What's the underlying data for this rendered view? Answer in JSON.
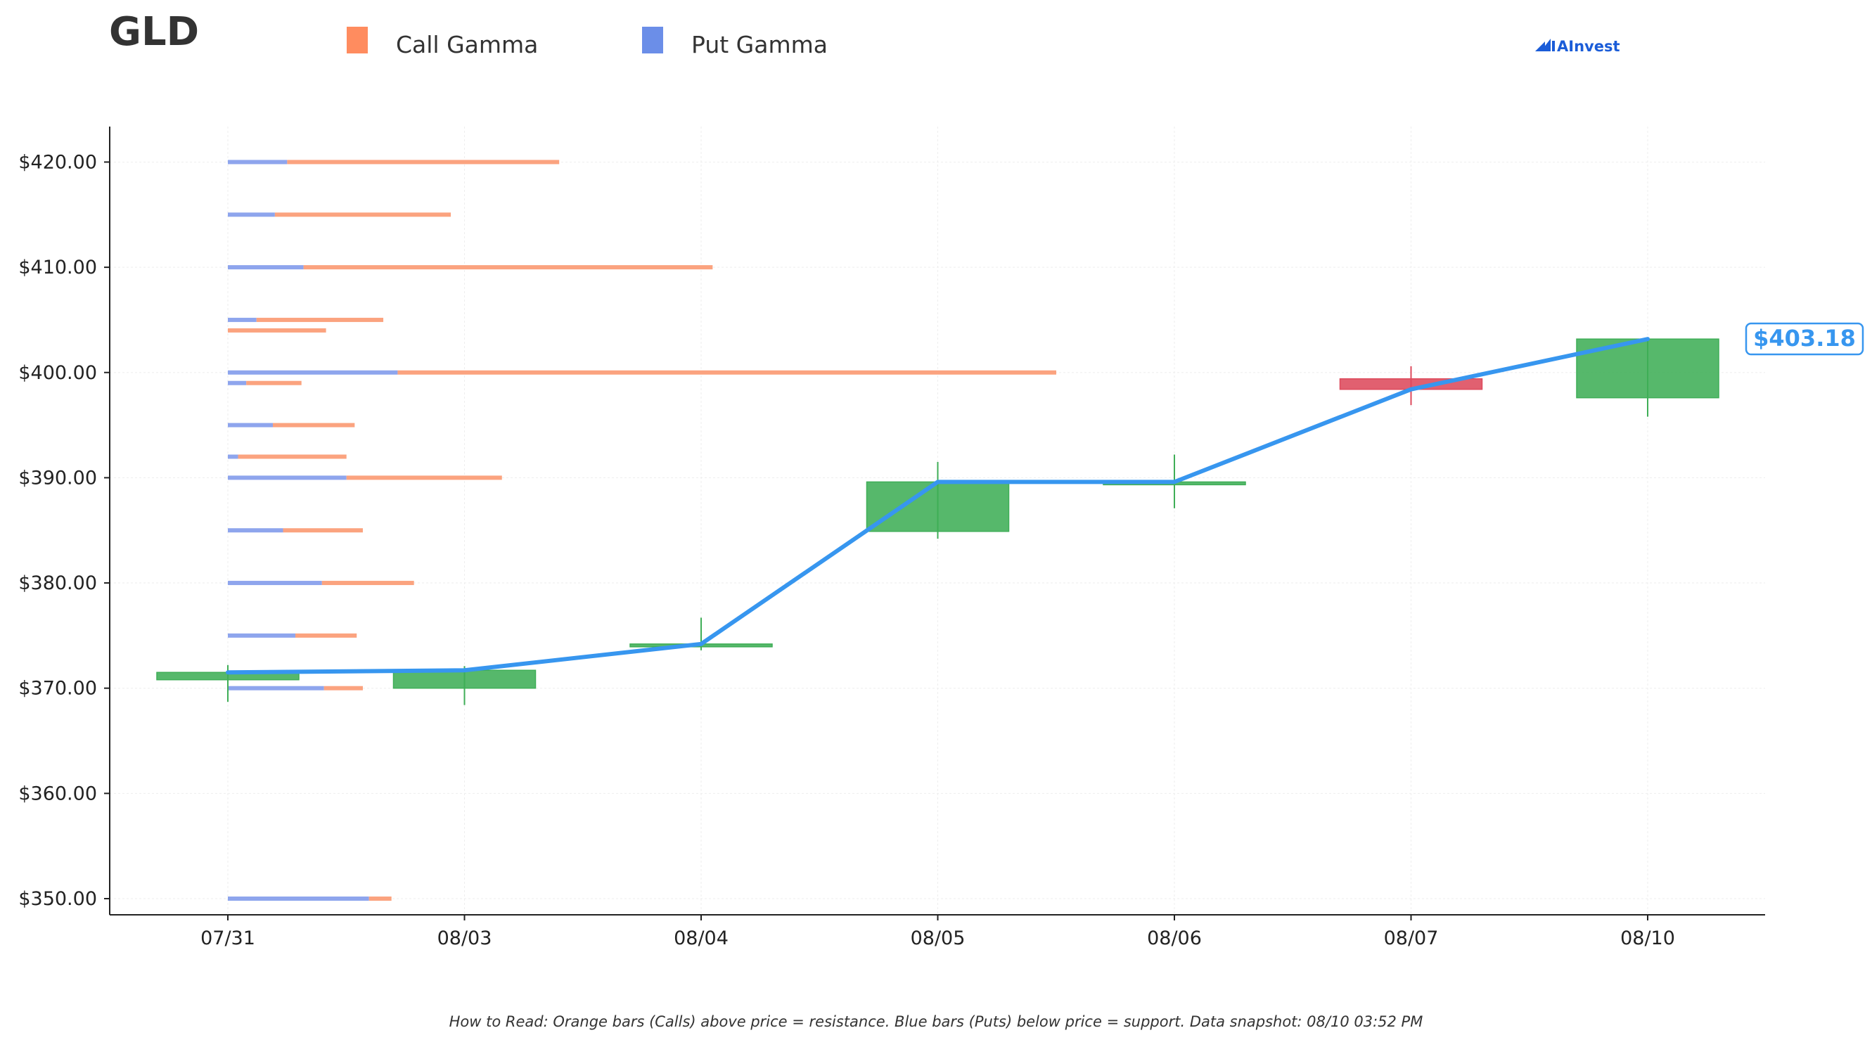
{
  "ticker": "GLD",
  "brand": "AInvest",
  "footnote": "How to Read: Orange bars (Calls) above price = resistance. Blue bars (Puts) below price = support. Data snapshot: 08/10 03:52 PM",
  "legend": [
    {
      "label": "Call Gamma",
      "color": "#ff8c5f"
    },
    {
      "label": "Put Gamma",
      "color": "#6b8ee8"
    }
  ],
  "colors": {
    "call": "#fba37f",
    "put": "#8ea5ed",
    "candle_up": "#3fae57",
    "candle_down": "#dd4a5c",
    "price_line": "#3796ef",
    "grid": "#eeeeee",
    "axis": "#222222"
  },
  "chart_data": {
    "type": "candlestick",
    "ylim": [
      347,
      422
    ],
    "y_ticks": [
      350,
      360,
      370,
      380,
      390,
      400,
      410,
      420
    ],
    "y_tick_labels": [
      "$350.00",
      "$360.00",
      "$370.00",
      "$380.00",
      "$390.00",
      "$400.00",
      "$410.00",
      "$420.00"
    ],
    "categories": [
      "07/31",
      "08/03",
      "08/04",
      "08/05",
      "08/06",
      "08/07",
      "08/10"
    ],
    "candles": [
      {
        "date": "07/31",
        "open": 370.8,
        "high": 372.2,
        "low": 368.7,
        "close": 371.5
      },
      {
        "date": "08/03",
        "open": 370.0,
        "high": 372.1,
        "low": 368.4,
        "close": 371.7
      },
      {
        "date": "08/04",
        "open": 374.0,
        "high": 376.7,
        "low": 373.6,
        "close": 374.2
      },
      {
        "date": "08/05",
        "open": 384.9,
        "high": 391.5,
        "low": 384.2,
        "close": 389.6
      },
      {
        "date": "08/06",
        "open": 389.5,
        "high": 392.2,
        "low": 387.1,
        "close": 389.6
      },
      {
        "date": "08/07",
        "open": 399.4,
        "high": 400.6,
        "low": 396.9,
        "close": 398.4
      },
      {
        "date": "08/10",
        "open": 397.6,
        "high": 403.2,
        "low": 395.8,
        "close": 403.18
      }
    ],
    "price_line": [
      371.5,
      371.7,
      374.2,
      389.6,
      389.6,
      398.4,
      403.18
    ],
    "last_price_label": "$403.18",
    "gamma_scale_max": 405,
    "gamma": [
      {
        "strike": 420,
        "put": 29,
        "call": 133
      },
      {
        "strike": 415,
        "put": 23,
        "call": 86
      },
      {
        "strike": 410,
        "put": 37,
        "call": 200
      },
      {
        "strike": 405,
        "put": 14,
        "call": 62
      },
      {
        "strike": 404,
        "put": 0,
        "call": 48
      },
      {
        "strike": 400,
        "put": 83,
        "call": 322
      },
      {
        "strike": 399,
        "put": 9,
        "call": 27
      },
      {
        "strike": 395,
        "put": 22,
        "call": 40
      },
      {
        "strike": 392,
        "put": 5,
        "call": 53
      },
      {
        "strike": 390,
        "put": 58,
        "call": 76
      },
      {
        "strike": 385,
        "put": 27,
        "call": 39
      },
      {
        "strike": 380,
        "put": 46,
        "call": 45
      },
      {
        "strike": 375,
        "put": 33,
        "call": 30
      },
      {
        "strike": 370,
        "put": 47,
        "call": 19
      },
      {
        "strike": 350,
        "put": 69,
        "call": 11
      }
    ]
  }
}
